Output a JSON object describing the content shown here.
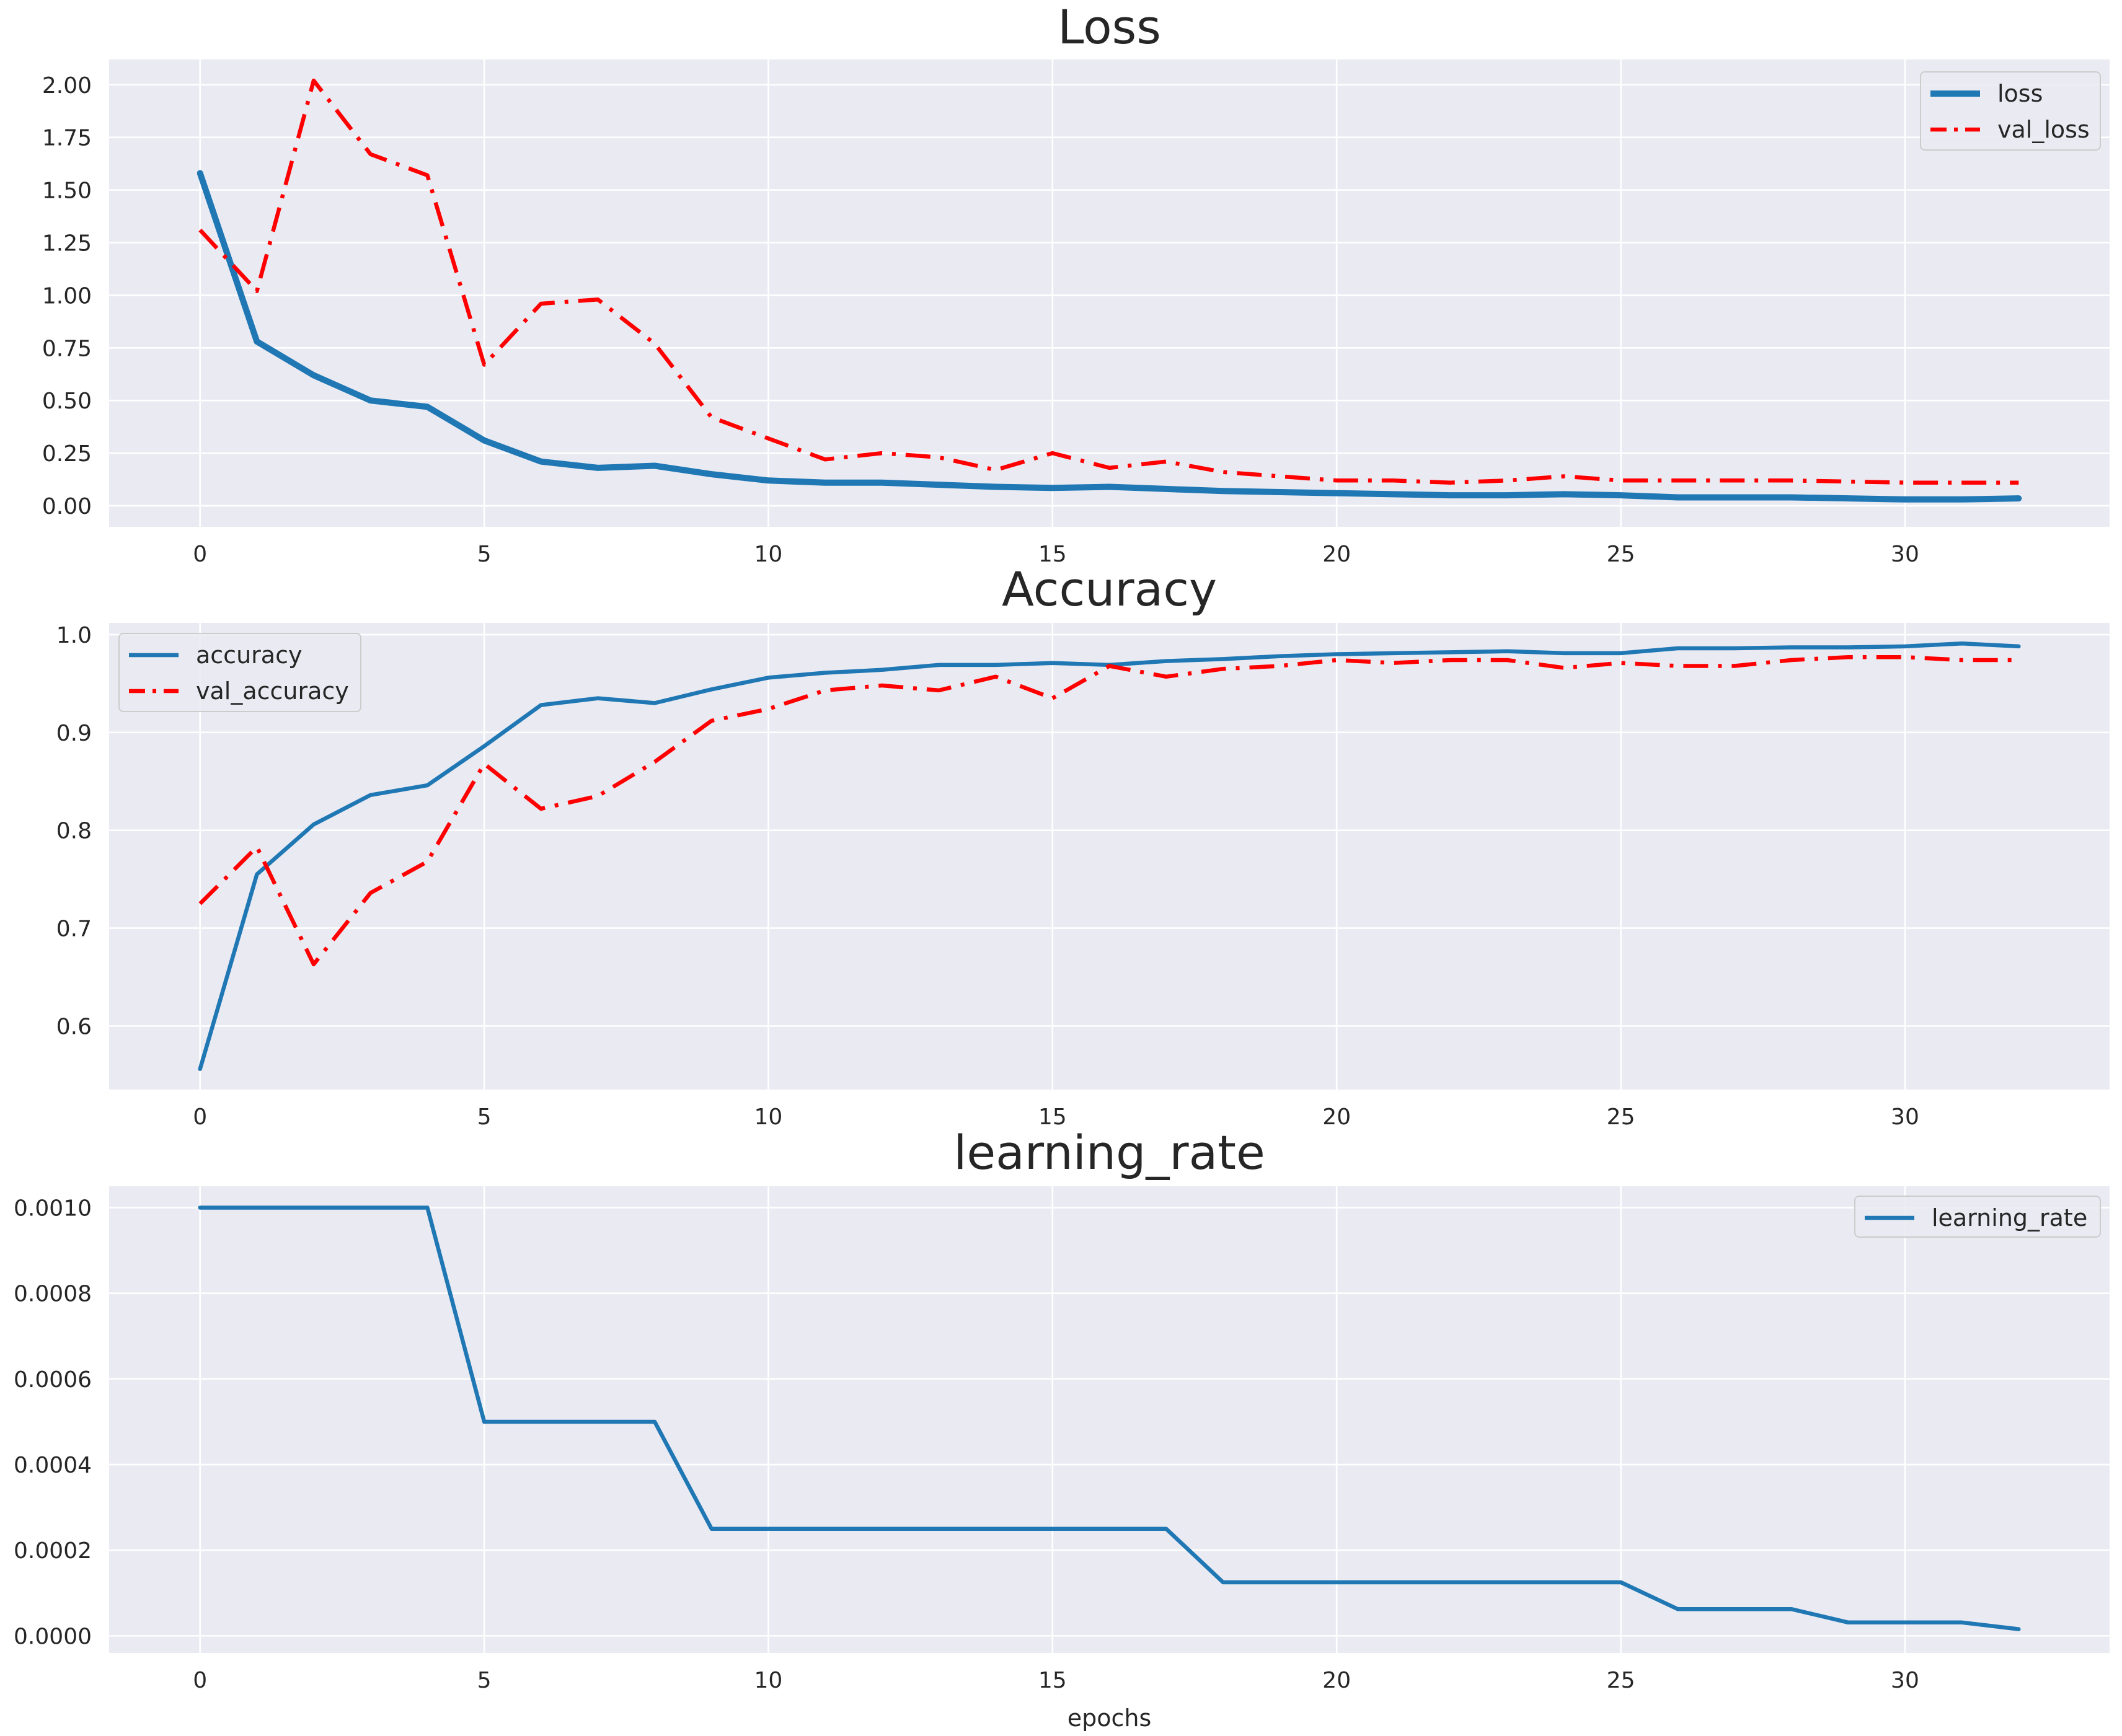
{
  "chart_data": [
    {
      "type": "line",
      "title": "Loss",
      "xlabel": "",
      "ylabel": "",
      "xlim": [
        -1.6,
        33.6
      ],
      "ylim": [
        -0.1,
        2.12
      ],
      "xticks": [
        0,
        5,
        10,
        15,
        20,
        25,
        30
      ],
      "yticks": [
        0.0,
        0.25,
        0.5,
        0.75,
        1.0,
        1.25,
        1.5,
        1.75,
        2.0
      ],
      "tick_labels_x": [
        "0",
        "5",
        "10",
        "15",
        "20",
        "25",
        "30"
      ],
      "tick_labels_y": [
        "0.00",
        "0.25",
        "0.50",
        "0.75",
        "1.00",
        "1.25",
        "1.50",
        "1.75",
        "2.00"
      ],
      "grid": true,
      "legend": "top-right",
      "series": [
        {
          "name": "loss",
          "color": "#1f77b4",
          "style": "solid",
          "weight": "thick",
          "values": [
            1.58,
            0.78,
            0.62,
            0.5,
            0.47,
            0.31,
            0.21,
            0.18,
            0.19,
            0.15,
            0.12,
            0.11,
            0.11,
            0.1,
            0.09,
            0.085,
            0.09,
            0.08,
            0.07,
            0.065,
            0.06,
            0.055,
            0.05,
            0.05,
            0.055,
            0.05,
            0.04,
            0.04,
            0.04,
            0.035,
            0.03,
            0.03,
            0.035
          ]
        },
        {
          "name": "val_loss",
          "color": "#ff0000",
          "style": "dashdot",
          "weight": "normal",
          "values": [
            1.31,
            1.02,
            2.02,
            1.67,
            1.57,
            0.67,
            0.96,
            0.98,
            0.77,
            0.42,
            0.32,
            0.22,
            0.25,
            0.23,
            0.17,
            0.25,
            0.18,
            0.21,
            0.16,
            0.14,
            0.12,
            0.12,
            0.11,
            0.12,
            0.14,
            0.12,
            0.12,
            0.12,
            0.12,
            0.115,
            0.11,
            0.11,
            0.11
          ]
        }
      ]
    },
    {
      "type": "line",
      "title": "Accuracy",
      "xlabel": "",
      "ylabel": "",
      "xlim": [
        -1.6,
        33.6
      ],
      "ylim": [
        0.535,
        1.012
      ],
      "xticks": [
        0,
        5,
        10,
        15,
        20,
        25,
        30
      ],
      "yticks": [
        0.6,
        0.7,
        0.8,
        0.9,
        1.0
      ],
      "tick_labels_x": [
        "0",
        "5",
        "10",
        "15",
        "20",
        "25",
        "30"
      ],
      "tick_labels_y": [
        "0.6",
        "0.7",
        "0.8",
        "0.9",
        "1.0"
      ],
      "grid": true,
      "legend": "top-left",
      "series": [
        {
          "name": "accuracy",
          "color": "#1f77b4",
          "style": "solid",
          "weight": "normal",
          "values": [
            0.556,
            0.755,
            0.806,
            0.836,
            0.846,
            0.886,
            0.928,
            0.935,
            0.93,
            0.944,
            0.956,
            0.961,
            0.964,
            0.969,
            0.969,
            0.971,
            0.969,
            0.973,
            0.975,
            0.978,
            0.98,
            0.981,
            0.982,
            0.983,
            0.981,
            0.981,
            0.986,
            0.986,
            0.987,
            0.987,
            0.988,
            0.991,
            0.988
          ]
        },
        {
          "name": "val_accuracy",
          "color": "#ff0000",
          "style": "dashdot",
          "weight": "normal",
          "values": [
            0.725,
            0.783,
            0.663,
            0.736,
            0.768,
            0.868,
            0.822,
            0.835,
            0.87,
            0.912,
            0.924,
            0.943,
            0.948,
            0.943,
            0.957,
            0.935,
            0.968,
            0.957,
            0.965,
            0.968,
            0.974,
            0.971,
            0.974,
            0.974,
            0.966,
            0.971,
            0.968,
            0.968,
            0.974,
            0.977,
            0.977,
            0.974,
            0.974
          ]
        }
      ]
    },
    {
      "type": "line",
      "title": "learning_rate",
      "xlabel": "epochs",
      "ylabel": "",
      "xlim": [
        -1.6,
        33.6
      ],
      "ylim": [
        -4e-05,
        0.00105
      ],
      "xticks": [
        0,
        5,
        10,
        15,
        20,
        25,
        30
      ],
      "yticks": [
        0.0,
        0.0002,
        0.0004,
        0.0006,
        0.0008,
        0.001
      ],
      "tick_labels_x": [
        "0",
        "5",
        "10",
        "15",
        "20",
        "25",
        "30"
      ],
      "tick_labels_y": [
        "0.0000",
        "0.0002",
        "0.0004",
        "0.0006",
        "0.0008",
        "0.0010"
      ],
      "grid": true,
      "legend": "top-right",
      "series": [
        {
          "name": "learning_rate",
          "color": "#1f77b4",
          "style": "solid",
          "weight": "normal",
          "values": [
            0.001,
            0.001,
            0.001,
            0.001,
            0.001,
            0.0005,
            0.0005,
            0.0005,
            0.0005,
            0.00025,
            0.00025,
            0.00025,
            0.00025,
            0.00025,
            0.00025,
            0.00025,
            0.00025,
            0.00025,
            0.000125,
            0.000125,
            0.000125,
            0.000125,
            0.000125,
            0.000125,
            0.000125,
            0.000125,
            6.25e-05,
            6.25e-05,
            6.25e-05,
            3.125e-05,
            3.125e-05,
            3.125e-05,
            1.56e-05
          ]
        }
      ]
    }
  ]
}
